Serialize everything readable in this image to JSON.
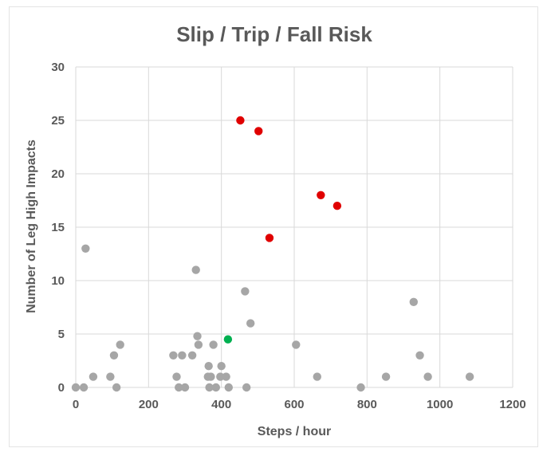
{
  "chart_data": {
    "type": "scatter",
    "title": "Slip / Trip / Fall Risk",
    "xlabel": "Steps  / hour",
    "ylabel": "Number of Leg High  Impacts",
    "xlim": [
      0,
      1200
    ],
    "ylim": [
      0,
      30
    ],
    "x_ticks": [
      0,
      200,
      400,
      600,
      800,
      1000,
      1200
    ],
    "y_ticks": [
      0,
      5,
      10,
      15,
      20,
      25,
      30
    ],
    "grid": true,
    "legend": "none",
    "colors": {
      "gray": "#a6a6a6",
      "red": "#e00000",
      "green": "#00b050"
    },
    "series": [
      {
        "color": "gray",
        "points": [
          {
            "x": 0,
            "y": 0
          },
          {
            "x": 22,
            "y": 0
          },
          {
            "x": 27,
            "y": 13
          },
          {
            "x": 48,
            "y": 1
          },
          {
            "x": 95,
            "y": 1
          },
          {
            "x": 105,
            "y": 3
          },
          {
            "x": 112,
            "y": 0
          },
          {
            "x": 122,
            "y": 4
          },
          {
            "x": 268,
            "y": 3
          },
          {
            "x": 277,
            "y": 1
          },
          {
            "x": 283,
            "y": 0
          },
          {
            "x": 292,
            "y": 3
          },
          {
            "x": 300,
            "y": 0
          },
          {
            "x": 320,
            "y": 3
          },
          {
            "x": 330,
            "y": 11
          },
          {
            "x": 334,
            "y": 4.8
          },
          {
            "x": 337,
            "y": 4
          },
          {
            "x": 363,
            "y": 1
          },
          {
            "x": 365,
            "y": 2
          },
          {
            "x": 367,
            "y": 0
          },
          {
            "x": 371,
            "y": 1
          },
          {
            "x": 378,
            "y": 4
          },
          {
            "x": 385,
            "y": 0
          },
          {
            "x": 397,
            "y": 1
          },
          {
            "x": 400,
            "y": 2
          },
          {
            "x": 413,
            "y": 1
          },
          {
            "x": 420,
            "y": 0
          },
          {
            "x": 465,
            "y": 9
          },
          {
            "x": 469,
            "y": 0
          },
          {
            "x": 480,
            "y": 6
          },
          {
            "x": 605,
            "y": 4
          },
          {
            "x": 663,
            "y": 1
          },
          {
            "x": 783,
            "y": 0
          },
          {
            "x": 852,
            "y": 1
          },
          {
            "x": 928,
            "y": 8
          },
          {
            "x": 945,
            "y": 3
          },
          {
            "x": 967,
            "y": 1
          },
          {
            "x": 1082,
            "y": 1
          }
        ]
      },
      {
        "color": "red",
        "points": [
          {
            "x": 452,
            "y": 25
          },
          {
            "x": 502,
            "y": 24
          },
          {
            "x": 532,
            "y": 14
          },
          {
            "x": 673,
            "y": 18
          },
          {
            "x": 718,
            "y": 17
          }
        ]
      },
      {
        "color": "green",
        "points": [
          {
            "x": 418,
            "y": 4.5
          }
        ]
      }
    ]
  }
}
